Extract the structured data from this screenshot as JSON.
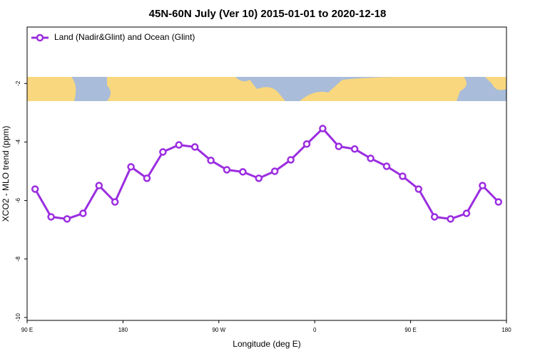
{
  "chart_data": {
    "type": "line",
    "title": "45N-60N July (Ver 10)   2015-01-01 to 2020-12-18",
    "x_label": "Longitude (deg E)",
    "y_label": "XCO2 - MLO trend (ppm)",
    "x": [
      97.5,
      112.5,
      127.5,
      142.5,
      157.5,
      172.5,
      187.5,
      202.5,
      217.5,
      232.5,
      247.5,
      262.5,
      277.5,
      292.5,
      307.5,
      322.5,
      337.5,
      352.5,
      367.5,
      382.5,
      397.5,
      412.5,
      427.5,
      442.5,
      457.5,
      472.5,
      487.5,
      502.5,
      517.5,
      532.5
    ],
    "series": [
      {
        "name": "Land (Nadir&Glint) and Ocean (Glint)",
        "color": "#9b2de0",
        "values": [
          -5.61,
          -6.56,
          -6.63,
          -6.44,
          -5.49,
          -6.05,
          -4.85,
          -5.24,
          -4.34,
          -4.1,
          -4.17,
          -4.63,
          -4.95,
          -5.02,
          -5.24,
          -5.0,
          -4.61,
          -4.07,
          -3.54,
          -4.15,
          -4.24,
          -4.56,
          -4.83,
          -5.17,
          -5.61,
          -6.56,
          -6.63,
          -6.44,
          -5.49,
          -6.05
        ]
      }
    ],
    "xlim": [
      90,
      540
    ],
    "xticks": [
      {
        "value": 90,
        "label": "90 E"
      },
      {
        "value": 180,
        "label": "180"
      },
      {
        "value": 270,
        "label": "90 W"
      },
      {
        "value": 360,
        "label": "0"
      },
      {
        "value": 450,
        "label": "90 E"
      },
      {
        "value": 540,
        "label": "180"
      }
    ],
    "ylim": [
      -10.1,
      -0.07
    ],
    "yticks": [
      -2,
      -4,
      -6,
      -8,
      -10
    ],
    "legend": "top-left"
  }
}
